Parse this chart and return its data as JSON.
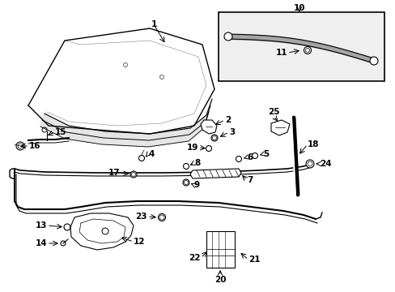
{
  "bg_color": "#ffffff",
  "line_color": "#000000",
  "gray_bg": "#e8e8e8",
  "lc": "#000000",
  "gc": "#666666"
}
